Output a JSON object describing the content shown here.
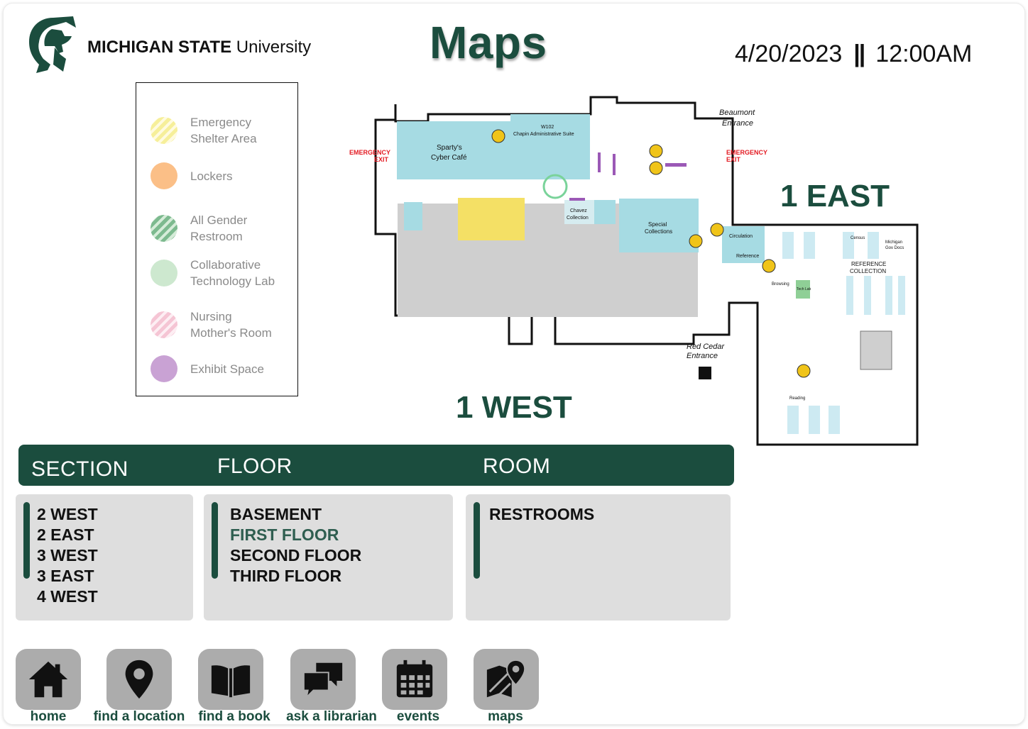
{
  "header": {
    "brand_bold": "MICHIGAN STATE",
    "brand_light": "University",
    "title": "Maps",
    "date": "4/20/2023",
    "separator": "||",
    "time": "12:00AM"
  },
  "legend": {
    "items": [
      {
        "line1": "Emergency",
        "line2": "Shelter Area",
        "color": "#f6ef9a"
      },
      {
        "line1": "Lockers",
        "line2": "",
        "color": "#fbbf87"
      },
      {
        "line1": "All Gender",
        "line2": "Restroom",
        "color": "#7dba8f"
      },
      {
        "line1": "Collaborative",
        "line2": "Technology Lab",
        "color": "#cde8cf"
      },
      {
        "line1": "Nursing",
        "line2": "Mother's Room",
        "color": "#f5c5d4"
      },
      {
        "line1": "Exhibit Space",
        "line2": "",
        "color": "#c9a2d4"
      }
    ]
  },
  "map": {
    "label_east": "1 EAST",
    "label_west": "1 WEST",
    "emergency_exit_1": "EMERGENCY",
    "emergency_exit_2": "EXIT",
    "beaumont_1": "Beaumont",
    "beaumont_2": "Entrance",
    "red_cedar_1": "Red Cedar",
    "red_cedar_2": "Entrance",
    "spartys_1": "Sparty's",
    "spartys_2": "Cyber Café",
    "w102": "W102",
    "chapin": "Chapin Administrative Suite",
    "special_1": "Special",
    "special_2": "Collections",
    "circulation": "Circulation",
    "reference": "Reference",
    "ref_coll_1": "REFERENCE",
    "ref_coll_2": "COLLECTION",
    "chavez_1": "Chavez",
    "chavez_2": "Collection",
    "census": "Census",
    "michigan_gov_1": "Michigan",
    "michigan_gov_2": "Gov Docs",
    "browsing": "Browsing",
    "tech_lab": "Tech Lab",
    "reading": "Reading",
    "colors": {
      "cyan": "#a6dbe3",
      "yellow": "#f4e065",
      "gray": "#cfcfcf",
      "green": "#1b4d3e",
      "red": "#e31b23",
      "purple": "#9b59b6"
    }
  },
  "selector": {
    "section_header": "SECTION",
    "floor_header": "FLOOR",
    "room_header": "ROOM",
    "sections": [
      "2 WEST",
      "2 EAST",
      "3 WEST",
      "3 EAST",
      "4 WEST"
    ],
    "floors": [
      "BASEMENT",
      "FIRST FLOOR",
      "SECOND FLOOR",
      "THIRD FLOOR"
    ],
    "selected_floor": "FIRST FLOOR",
    "rooms": [
      "RESTROOMS"
    ]
  },
  "nav": {
    "home": "home",
    "find_location": "find a location",
    "find_book": "find a book",
    "ask_librarian": "ask a librarian",
    "events": "events",
    "maps": "maps"
  },
  "colors": {
    "accent": "#1b4d3e",
    "panel": "#dedede",
    "nav_tile": "#acacac"
  }
}
